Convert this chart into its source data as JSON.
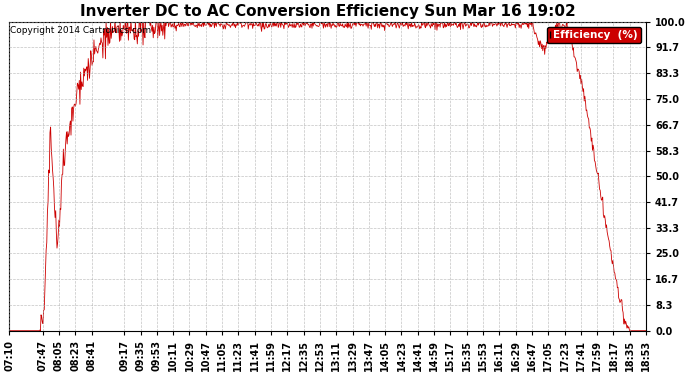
{
  "title": "Inverter DC to AC Conversion Efficiency Sun Mar 16 19:02",
  "copyright": "Copyright 2014 Cartronics.com",
  "legend_label": "Efficiency  (%)",
  "ylim": [
    0.0,
    100.0
  ],
  "yticks": [
    0.0,
    8.3,
    16.7,
    25.0,
    33.3,
    41.7,
    50.0,
    58.3,
    66.7,
    75.0,
    83.3,
    91.7,
    100.0
  ],
  "line_color": "#cc0000",
  "bg_color": "#ffffff",
  "plot_bg_color": "#ffffff",
  "grid_color": "#aaaaaa",
  "title_fontsize": 11,
  "tick_fontsize": 7,
  "legend_bg": "#cc0000",
  "legend_text_color": "#ffffff",
  "time_labels": [
    "07:10",
    "07:47",
    "08:05",
    "08:23",
    "08:41",
    "09:17",
    "09:35",
    "09:53",
    "10:11",
    "10:29",
    "10:47",
    "11:05",
    "11:23",
    "11:41",
    "11:59",
    "12:17",
    "12:35",
    "12:53",
    "13:11",
    "13:29",
    "13:47",
    "14:05",
    "14:23",
    "14:41",
    "14:59",
    "15:17",
    "15:35",
    "15:53",
    "16:11",
    "16:29",
    "16:47",
    "17:05",
    "17:23",
    "17:41",
    "17:59",
    "18:17",
    "18:35",
    "18:53"
  ]
}
